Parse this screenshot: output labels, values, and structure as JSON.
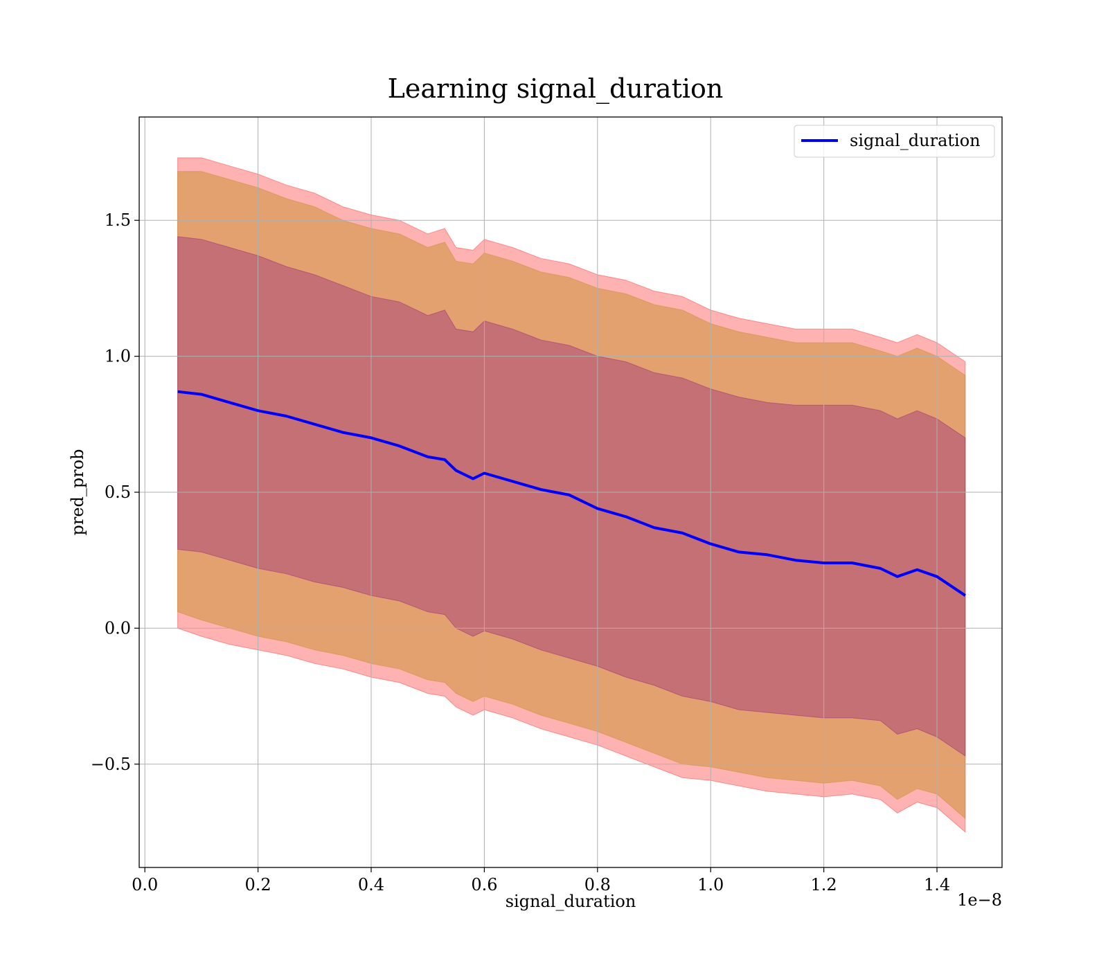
{
  "chart_data": {
    "type": "area",
    "title": "Learning signal_duration",
    "xlabel": "signal_duration",
    "ylabel": "pred_prob",
    "x_offset_label": "1e−8",
    "xlim": [
      -0.01,
      1.515
    ],
    "ylim": [
      -0.88,
      1.88
    ],
    "x_ticks": [
      0.0,
      0.2,
      0.4,
      0.6,
      0.8,
      1.0,
      1.2,
      1.4
    ],
    "x_tick_labels": [
      "0.0",
      "0.2",
      "0.4",
      "0.6",
      "0.8",
      "1.0",
      "1.2",
      "1.4"
    ],
    "y_ticks": [
      -0.5,
      0.0,
      0.5,
      1.0,
      1.5
    ],
    "y_tick_labels": [
      "−0.5",
      "0.0",
      "0.5",
      "1.0",
      "1.5"
    ],
    "grid": true,
    "legend": {
      "position": "top-right",
      "entries": [
        "signal_duration"
      ]
    },
    "colors": {
      "line": "#0000ff",
      "band_outer": "#ff0000",
      "band_mid": "#b8860b",
      "band_inner": "#800080"
    },
    "x": [
      0.058,
      0.1,
      0.15,
      0.2,
      0.25,
      0.3,
      0.35,
      0.4,
      0.45,
      0.5,
      0.53,
      0.55,
      0.58,
      0.6,
      0.65,
      0.7,
      0.75,
      0.8,
      0.85,
      0.9,
      0.95,
      1.0,
      1.05,
      1.1,
      1.15,
      1.2,
      1.25,
      1.3,
      1.33,
      1.365,
      1.4,
      1.45
    ],
    "series": [
      {
        "name": "signal_duration",
        "values": [
          0.87,
          0.86,
          0.83,
          0.8,
          0.78,
          0.75,
          0.72,
          0.7,
          0.67,
          0.63,
          0.62,
          0.58,
          0.55,
          0.57,
          0.54,
          0.51,
          0.49,
          0.44,
          0.41,
          0.37,
          0.35,
          0.31,
          0.28,
          0.27,
          0.25,
          0.24,
          0.24,
          0.22,
          0.19,
          0.215,
          0.19,
          0.12
        ]
      }
    ],
    "bands": [
      {
        "upper": [
          1.73,
          1.73,
          1.7,
          1.67,
          1.63,
          1.6,
          1.55,
          1.52,
          1.5,
          1.45,
          1.47,
          1.4,
          1.39,
          1.43,
          1.4,
          1.36,
          1.34,
          1.3,
          1.28,
          1.24,
          1.22,
          1.17,
          1.14,
          1.12,
          1.1,
          1.1,
          1.1,
          1.07,
          1.05,
          1.08,
          1.05,
          0.98
        ],
        "lower": [
          0.0,
          -0.03,
          -0.06,
          -0.08,
          -0.1,
          -0.13,
          -0.15,
          -0.18,
          -0.2,
          -0.24,
          -0.25,
          -0.29,
          -0.32,
          -0.3,
          -0.33,
          -0.37,
          -0.4,
          -0.43,
          -0.47,
          -0.51,
          -0.55,
          -0.56,
          -0.58,
          -0.6,
          -0.61,
          -0.62,
          -0.61,
          -0.63,
          -0.68,
          -0.64,
          -0.66,
          -0.75
        ]
      },
      {
        "upper": [
          1.68,
          1.68,
          1.65,
          1.62,
          1.58,
          1.55,
          1.5,
          1.47,
          1.45,
          1.4,
          1.42,
          1.35,
          1.34,
          1.38,
          1.35,
          1.31,
          1.29,
          1.25,
          1.23,
          1.19,
          1.17,
          1.12,
          1.09,
          1.07,
          1.05,
          1.05,
          1.05,
          1.02,
          1.0,
          1.03,
          1.0,
          0.93
        ],
        "lower": [
          0.06,
          0.03,
          0.0,
          -0.03,
          -0.05,
          -0.08,
          -0.1,
          -0.13,
          -0.15,
          -0.19,
          -0.2,
          -0.24,
          -0.27,
          -0.25,
          -0.28,
          -0.32,
          -0.35,
          -0.38,
          -0.42,
          -0.46,
          -0.5,
          -0.51,
          -0.53,
          -0.55,
          -0.56,
          -0.57,
          -0.56,
          -0.58,
          -0.63,
          -0.59,
          -0.61,
          -0.7
        ]
      },
      {
        "upper": [
          1.44,
          1.43,
          1.4,
          1.37,
          1.33,
          1.3,
          1.26,
          1.22,
          1.2,
          1.15,
          1.17,
          1.1,
          1.09,
          1.13,
          1.1,
          1.06,
          1.04,
          1.0,
          0.98,
          0.94,
          0.92,
          0.88,
          0.85,
          0.83,
          0.82,
          0.82,
          0.82,
          0.8,
          0.77,
          0.8,
          0.77,
          0.7
        ],
        "lower": [
          0.29,
          0.28,
          0.25,
          0.22,
          0.2,
          0.17,
          0.15,
          0.12,
          0.1,
          0.06,
          0.05,
          0.0,
          -0.03,
          -0.01,
          -0.04,
          -0.08,
          -0.11,
          -0.14,
          -0.18,
          -0.21,
          -0.25,
          -0.27,
          -0.3,
          -0.31,
          -0.32,
          -0.33,
          -0.33,
          -0.34,
          -0.39,
          -0.37,
          -0.4,
          -0.47
        ]
      }
    ]
  }
}
